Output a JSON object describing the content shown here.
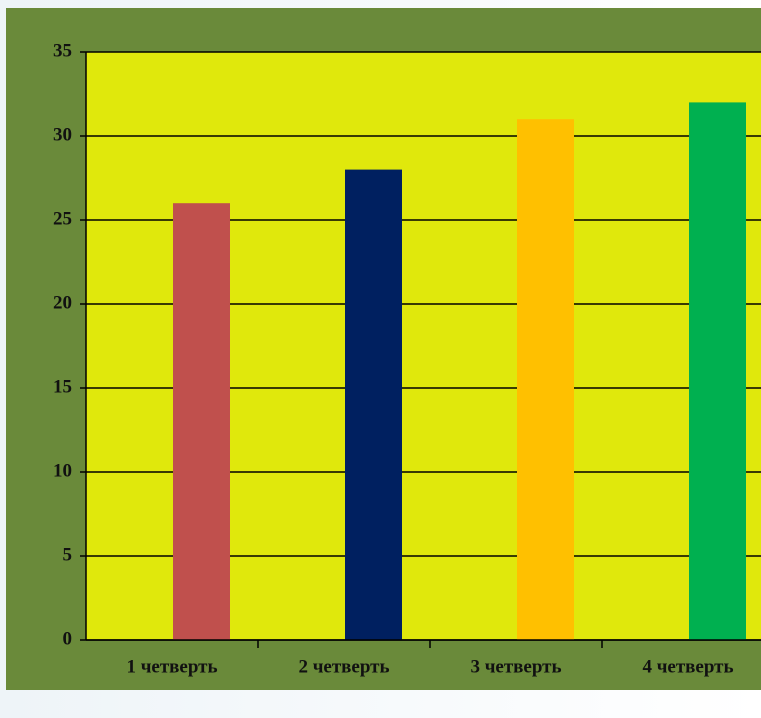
{
  "chart_data": {
    "type": "bar",
    "categories": [
      "1 четверть",
      "2 четверть",
      "3 четверть",
      "4 четверть"
    ],
    "values": [
      26,
      28,
      31,
      32
    ],
    "colors": [
      "#c0504d",
      "#002060",
      "#ffc000",
      "#00b050"
    ],
    "ylim": [
      0,
      35
    ],
    "yticks": [
      0,
      5,
      10,
      15,
      20,
      25,
      30,
      35
    ],
    "grid": true
  }
}
